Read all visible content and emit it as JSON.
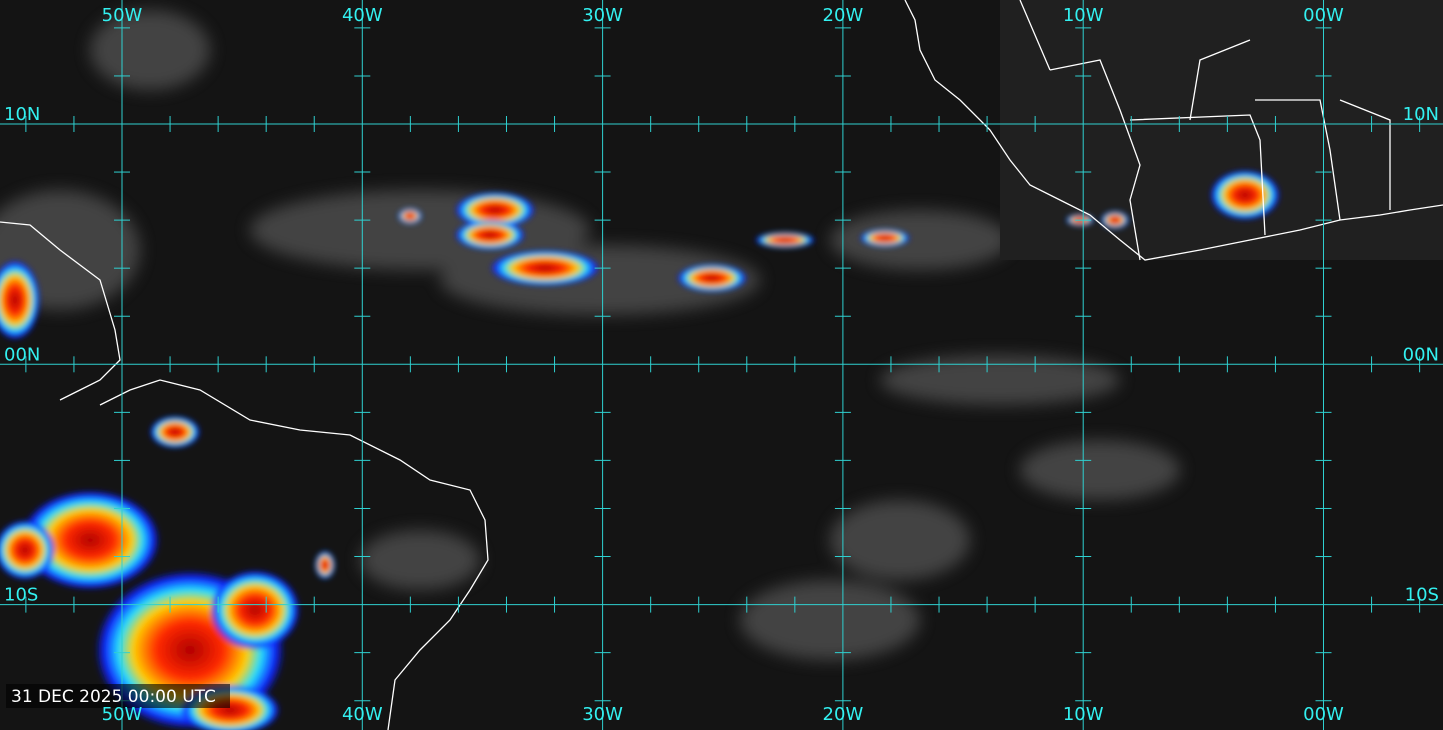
{
  "map": {
    "longitude_labels_top": [
      "50W",
      "40W",
      "30W",
      "20W",
      "10W",
      "00W"
    ],
    "longitude_labels_bottom": [
      "50W",
      "40W",
      "30W",
      "20W",
      "10W",
      "00W"
    ],
    "latitude_labels_left": [
      "10N",
      "00N",
      "10S"
    ],
    "latitude_labels_right": [
      "10N",
      "00N",
      "10S"
    ],
    "timestamp": "31 DEC 2025 00:00 UTC"
  }
}
